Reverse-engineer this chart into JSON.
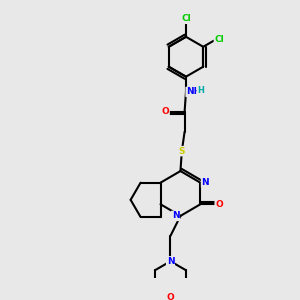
{
  "background_color": "#e8e8e8",
  "bond_color": "#000000",
  "atom_colors": {
    "N": "#0000ff",
    "O": "#ff0000",
    "S": "#cccc00",
    "Cl": "#00cc00",
    "H": "#00aaaa",
    "C": "#000000"
  },
  "title": "",
  "figsize": [
    3.0,
    3.0
  ],
  "dpi": 100
}
